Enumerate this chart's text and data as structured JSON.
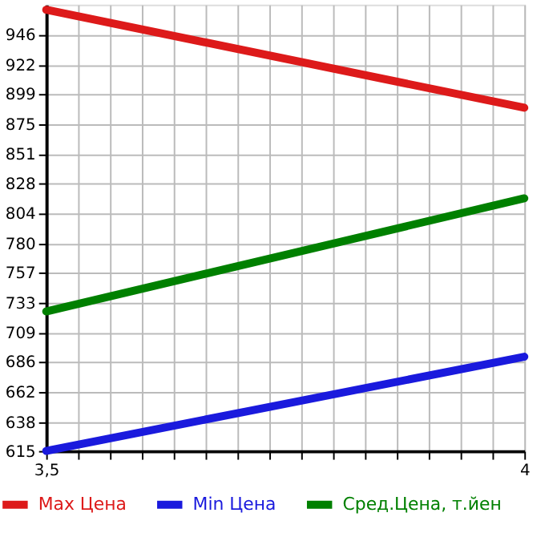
{
  "chart_data": {
    "type": "line",
    "x": [
      3.5,
      4
    ],
    "series": [
      {
        "name": "Max Цена",
        "color": "#dd1a1a",
        "values": [
          966,
          888
        ]
      },
      {
        "name": "Min Цена",
        "color": "#1a1add",
        "values": [
          615,
          690
        ]
      },
      {
        "name": "Сред.Цена, т.йен",
        "color": "#008000",
        "values": [
          726,
          816
        ]
      }
    ],
    "xlim": [
      3.5,
      4
    ],
    "xticks": [
      {
        "value": 3.5,
        "label": "3,5"
      },
      {
        "value": 3.5333,
        "label": null
      },
      {
        "value": 3.5667,
        "label": null
      },
      {
        "value": 3.6,
        "label": null
      },
      {
        "value": 3.6333,
        "label": null
      },
      {
        "value": 3.6667,
        "label": null
      },
      {
        "value": 3.7,
        "label": null
      },
      {
        "value": 3.7333,
        "label": null
      },
      {
        "value": 3.7667,
        "label": null
      },
      {
        "value": 3.8,
        "label": null
      },
      {
        "value": 3.8333,
        "label": null
      },
      {
        "value": 3.8667,
        "label": null
      },
      {
        "value": 3.9,
        "label": null
      },
      {
        "value": 3.9333,
        "label": null
      },
      {
        "value": 3.9667,
        "label": null
      },
      {
        "value": 4,
        "label": "4"
      }
    ],
    "ylim": [
      615,
      970
    ],
    "yticks": [
      615,
      638,
      662,
      686,
      709,
      733,
      757,
      780,
      804,
      828,
      851,
      875,
      899,
      922,
      946
    ],
    "grid": true,
    "legend": "bottom",
    "marker": "none",
    "line_style": "solid"
  }
}
